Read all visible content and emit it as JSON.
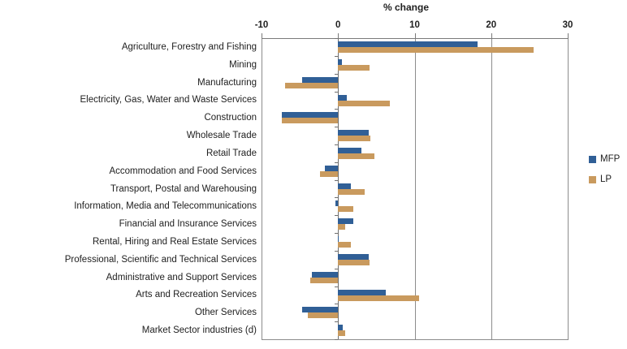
{
  "chart_data": {
    "type": "bar",
    "orientation": "horizontal",
    "title": "% change",
    "xlabel": "% change",
    "xlim": [
      -10,
      30
    ],
    "xticks": [
      -10,
      0,
      10,
      20,
      30
    ],
    "grid": true,
    "legend_position": "right",
    "categories": [
      "Agriculture, Forestry and Fishing",
      "Mining",
      "Manufacturing",
      "Electricity, Gas, Water and Waste Services",
      "Construction",
      "Wholesale Trade",
      "Retail Trade",
      "Accommodation and Food Services",
      "Transport, Postal and Warehousing",
      "Information, Media and Telecommunications",
      "Financial and Insurance Services",
      "Rental, Hiring and Real Estate Services",
      "Professional, Scientific and Technical Services",
      "Administrative and Support Services",
      "Arts and Recreation Services",
      "Other Services",
      "Market Sector industries (d)"
    ],
    "series": [
      {
        "name": "MFP",
        "color": "#305F96",
        "values": [
          18.2,
          0.5,
          -4.7,
          1.1,
          -7.3,
          4.0,
          3.1,
          -1.7,
          1.7,
          -0.3,
          2.0,
          0.1,
          4.0,
          -3.4,
          6.2,
          -4.7,
          0.6
        ]
      },
      {
        "name": "LP",
        "color": "#C99A5E",
        "values": [
          25.5,
          4.1,
          -6.9,
          6.8,
          -7.4,
          4.2,
          4.7,
          -2.4,
          3.5,
          2.0,
          0.9,
          1.7,
          4.1,
          -3.6,
          10.6,
          -4.0,
          0.9
        ]
      }
    ],
    "colors": {
      "zero_axis": "#6f6f6f",
      "gridline": "#8c8c8c",
      "top_axis": "#7a7a7a",
      "text": "#212121"
    }
  }
}
